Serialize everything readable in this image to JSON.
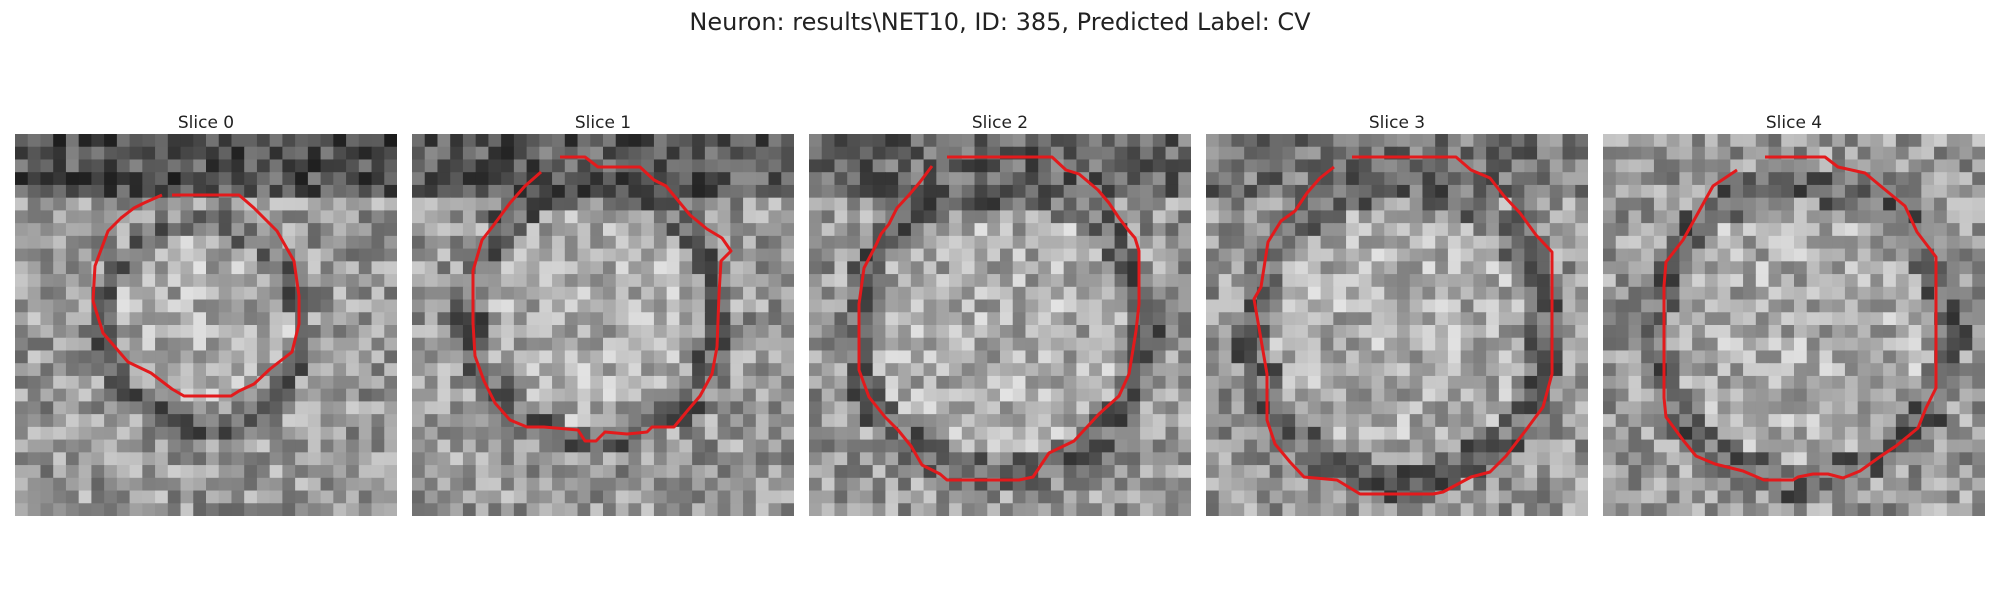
{
  "figure": {
    "title": "Neuron: results\\NET10, ID: 385, Predicted Label: CV"
  },
  "panels": [
    {
      "title": "Slice 0",
      "outline_color": "#e31a1c"
    },
    {
      "title": "Slice 1",
      "outline_color": "#e31a1c"
    },
    {
      "title": "Slice 2",
      "outline_color": "#e31a1c"
    },
    {
      "title": "Slice 3",
      "outline_color": "#e31a1c"
    },
    {
      "title": "Slice 4",
      "outline_color": "#e31a1c"
    }
  ]
}
